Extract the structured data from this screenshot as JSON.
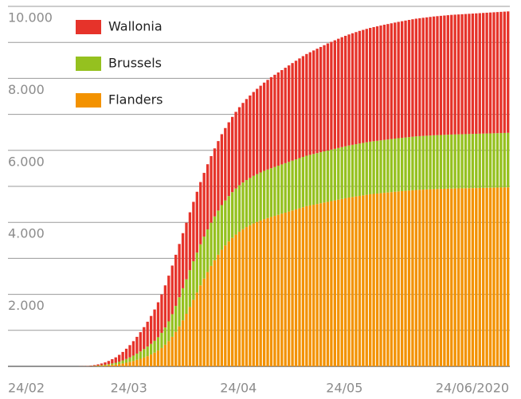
{
  "chart_data": {
    "type": "stacked-bar",
    "categories": [
      "24/02",
      null,
      null,
      null,
      null,
      null,
      null,
      null,
      null,
      null,
      null,
      null,
      null,
      null,
      null,
      null,
      null,
      null,
      null,
      null,
      null,
      null,
      null,
      null,
      null,
      null,
      null,
      null,
      null,
      "24/03",
      null,
      null,
      null,
      null,
      null,
      null,
      null,
      null,
      null,
      null,
      null,
      null,
      null,
      null,
      null,
      null,
      null,
      null,
      null,
      null,
      null,
      null,
      null,
      null,
      null,
      null,
      null,
      null,
      null,
      null,
      "24/04",
      null,
      null,
      null,
      null,
      null,
      null,
      null,
      null,
      null,
      null,
      null,
      null,
      null,
      null,
      null,
      null,
      null,
      null,
      null,
      null,
      null,
      null,
      null,
      null,
      null,
      null,
      null,
      null,
      null,
      "24/05",
      null,
      null,
      null,
      null,
      null,
      null,
      null,
      null,
      null,
      null,
      null,
      null,
      null,
      null,
      null,
      null,
      null,
      null,
      null,
      null,
      null,
      null,
      null,
      null,
      null,
      null,
      null,
      null,
      null,
      null,
      "24/06/2020",
      null,
      null,
      null,
      null,
      null,
      null,
      null,
      null,
      null,
      null,
      null,
      null,
      null,
      null,
      null,
      null,
      null,
      null,
      null,
      null
    ],
    "series": [
      {
        "name": "Flanders",
        "color": "#f39200",
        "values": [
          0,
          0,
          0,
          0,
          0,
          0,
          0,
          0,
          0,
          0,
          0,
          0,
          0,
          0,
          0,
          0,
          0,
          0,
          0,
          0,
          1,
          1,
          2,
          4,
          7,
          11,
          16,
          22,
          30,
          40,
          50,
          65,
          80,
          100,
          125,
          150,
          180,
          210,
          245,
          285,
          330,
          380,
          440,
          510,
          600,
          700,
          820,
          960,
          1110,
          1280,
          1460,
          1650,
          1850,
          2050,
          2250,
          2440,
          2620,
          2790,
          2950,
          3100,
          3240,
          3360,
          3470,
          3570,
          3660,
          3740,
          3810,
          3870,
          3920,
          3970,
          4010,
          4050,
          4090,
          4120,
          4150,
          4180,
          4210,
          4240,
          4270,
          4300,
          4330,
          4360,
          4390,
          4420,
          4450,
          4470,
          4490,
          4510,
          4530,
          4550,
          4570,
          4590,
          4610,
          4630,
          4650,
          4670,
          4690,
          4705,
          4720,
          4735,
          4750,
          4765,
          4780,
          4790,
          4800,
          4810,
          4820,
          4830,
          4840,
          4850,
          4860,
          4868,
          4876,
          4884,
          4892,
          4900,
          4905,
          4910,
          4915,
          4920,
          4925,
          4928,
          4931,
          4934,
          4937,
          4940,
          4942,
          4944,
          4946,
          4948,
          4950,
          4952,
          4954,
          4956,
          4958,
          4960,
          4962,
          4964,
          4966,
          4968,
          4970,
          4972
        ]
      },
      {
        "name": "Brussels",
        "color": "#95c11f",
        "values": [
          0,
          0,
          0,
          0,
          0,
          0,
          0,
          0,
          0,
          0,
          0,
          0,
          0,
          0,
          0,
          0,
          0,
          0,
          0,
          0,
          0,
          1,
          2,
          4,
          7,
          11,
          16,
          23,
          30,
          40,
          50,
          65,
          85,
          105,
          125,
          150,
          175,
          205,
          235,
          265,
          295,
          330,
          370,
          420,
          480,
          550,
          630,
          720,
          810,
          890,
          960,
          1020,
          1070,
          1110,
          1140,
          1165,
          1185,
          1200,
          1215,
          1228,
          1240,
          1250,
          1260,
          1270,
          1280,
          1290,
          1298,
          1306,
          1314,
          1322,
          1330,
          1336,
          1342,
          1348,
          1354,
          1360,
          1365,
          1370,
          1375,
          1380,
          1385,
          1390,
          1394,
          1398,
          1402,
          1406,
          1410,
          1414,
          1418,
          1422,
          1426,
          1430,
          1433,
          1436,
          1439,
          1442,
          1445,
          1448,
          1451,
          1454,
          1457,
          1460,
          1462,
          1464,
          1466,
          1468,
          1470,
          1472,
          1474,
          1476,
          1478,
          1480,
          1482,
          1484,
          1486,
          1488,
          1490,
          1491,
          1492,
          1493,
          1494,
          1495,
          1496,
          1497,
          1498,
          1499,
          1500,
          1501,
          1502,
          1503,
          1504,
          1505,
          1506,
          1507,
          1508,
          1509,
          1510,
          1511,
          1512,
          1513,
          1514,
          1515
        ]
      },
      {
        "name": "Wallonia",
        "color": "#e6332a",
        "values": [
          0,
          0,
          0,
          0,
          0,
          0,
          0,
          0,
          0,
          0,
          0,
          0,
          0,
          0,
          0,
          0,
          0,
          0,
          0,
          0,
          2,
          3,
          6,
          12,
          21,
          33,
          48,
          65,
          90,
          120,
          150,
          190,
          235,
          285,
          340,
          400,
          465,
          535,
          610,
          690,
          775,
          870,
          970,
          1070,
          1170,
          1270,
          1350,
          1420,
          1480,
          1530,
          1570,
          1610,
          1650,
          1690,
          1730,
          1770,
          1810,
          1850,
          1890,
          1930,
          1970,
          2010,
          2050,
          2090,
          2130,
          2170,
          2210,
          2250,
          2290,
          2330,
          2370,
          2410,
          2450,
          2490,
          2530,
          2560,
          2590,
          2620,
          2650,
          2680,
          2710,
          2740,
          2770,
          2800,
          2825,
          2850,
          2875,
          2900,
          2925,
          2950,
          2975,
          2995,
          3015,
          3035,
          3055,
          3070,
          3085,
          3100,
          3115,
          3130,
          3140,
          3150,
          3160,
          3170,
          3180,
          3190,
          3200,
          3208,
          3216,
          3224,
          3232,
          3240,
          3248,
          3256,
          3264,
          3270,
          3276,
          3282,
          3288,
          3294,
          3300,
          3305,
          3310,
          3315,
          3320,
          3325,
          3328,
          3331,
          3334,
          3337,
          3340,
          3343,
          3346,
          3349,
          3352,
          3355,
          3358,
          3361,
          3364,
          3367,
          3370,
          3373
        ]
      }
    ],
    "ylim": [
      0,
      10000
    ],
    "yticks": [
      {
        "value": 2000,
        "label": "2.000"
      },
      {
        "value": 4000,
        "label": "4.000"
      },
      {
        "value": 6000,
        "label": "6.000"
      },
      {
        "value": 8000,
        "label": "8.000"
      },
      {
        "value": 10000,
        "label": "10.000"
      }
    ],
    "minor_yticks": [
      0,
      1000,
      3000,
      5000,
      7000,
      9000
    ],
    "grid": true,
    "legend": "top-left"
  }
}
